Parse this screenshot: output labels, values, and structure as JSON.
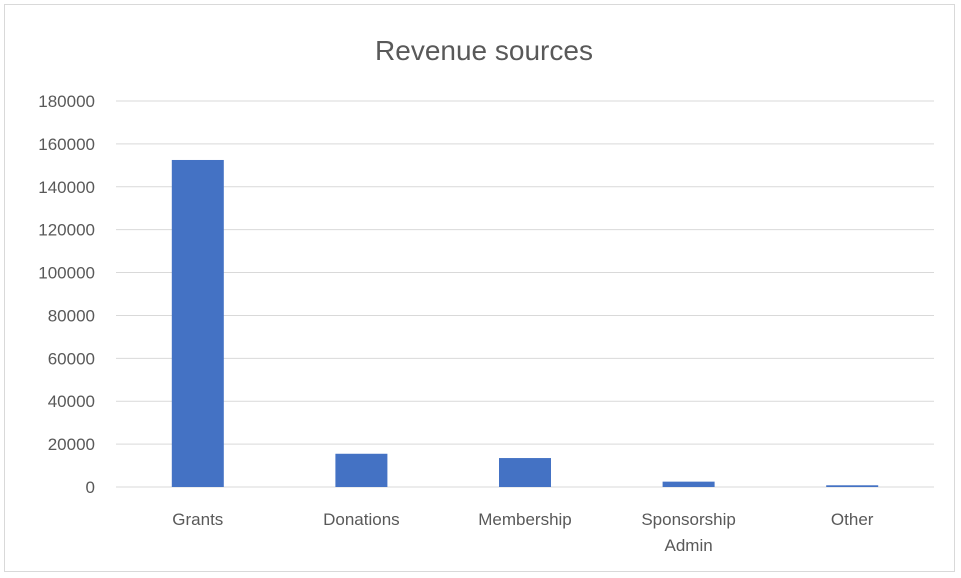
{
  "chart_data": {
    "type": "bar",
    "title": "Revenue sources",
    "xlabel": "",
    "ylabel": "",
    "categories": [
      [
        "Grants"
      ],
      [
        "Donations"
      ],
      [
        "Membership"
      ],
      [
        "Sponsorship",
        "Admin"
      ],
      [
        "Other"
      ]
    ],
    "values": [
      152500,
      15500,
      13500,
      2500,
      800
    ],
    "ylim": [
      0,
      180000
    ],
    "yticks": [
      "0",
      "20000",
      "40000",
      "60000",
      "80000",
      "100000",
      "120000",
      "140000",
      "160000",
      "180000"
    ],
    "grid": true,
    "legend": "none",
    "bar_color": "#4472c4"
  }
}
